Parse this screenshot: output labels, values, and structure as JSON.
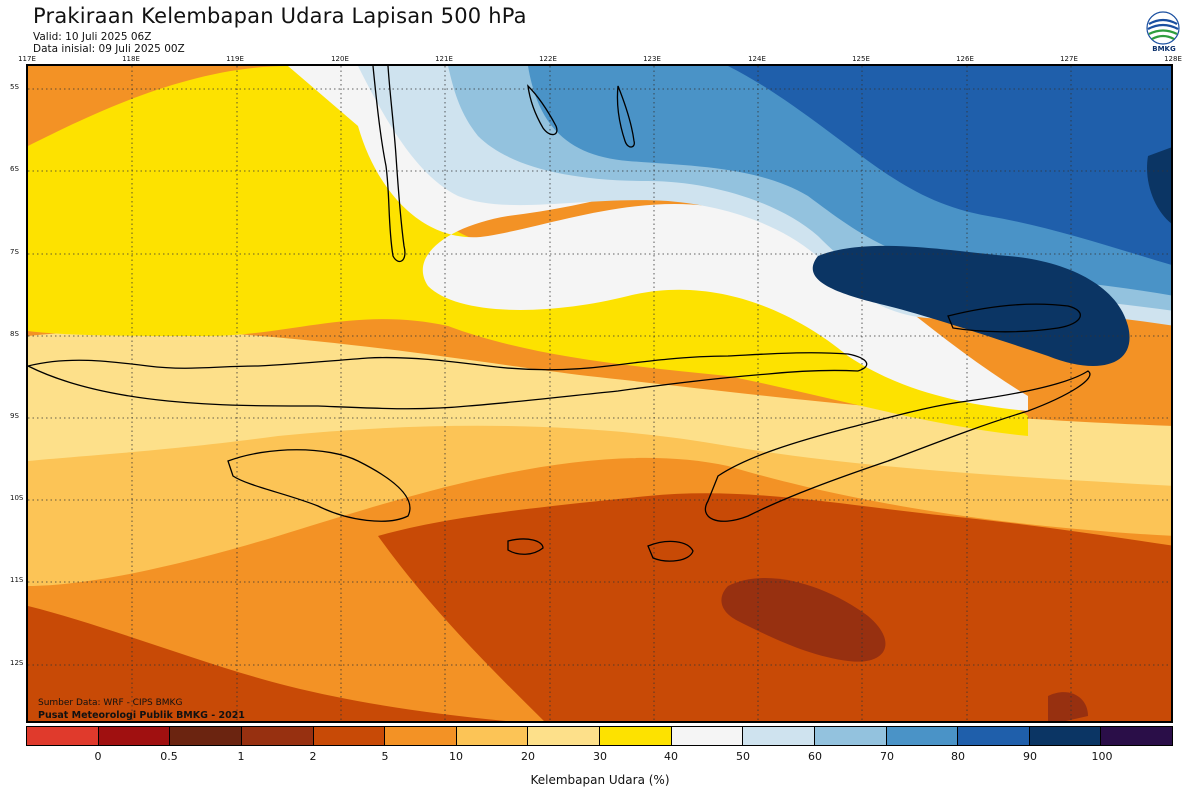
{
  "header": {
    "title": "Prakiraan Kelembapan Udara Lapisan 500 hPa",
    "valid": "Valid: 10 Juli 2025 06Z",
    "initial": "Data inisial: 09 Juli 2025 00Z"
  },
  "logo": {
    "icon": "bmkg-logo-icon",
    "text": "BMKG"
  },
  "axes": {
    "longitudes": [
      "117E",
      "118E",
      "119E",
      "120E",
      "121E",
      "122E",
      "123E",
      "124E",
      "125E",
      "126E",
      "127E",
      "128E"
    ],
    "latitudes": [
      "5S",
      "6S",
      "7S",
      "8S",
      "9S",
      "10S",
      "11S",
      "12S"
    ]
  },
  "source": {
    "line1": "Sumber Data: WRF - CIPS BMKG",
    "line2": "Pusat Meteorologi Publik BMKG - 2021"
  },
  "colorbar": {
    "title": "Kelembapan Udara (%)",
    "colors": [
      "#e03a2c",
      "#a01010",
      "#6b2410",
      "#973010",
      "#c84a06",
      "#f39225",
      "#fcc456",
      "#fde08a",
      "#fde200",
      "#f5f5f5",
      "#cfe3ef",
      "#93c2de",
      "#4a93c7",
      "#1f5fab",
      "#0b3564",
      "#2a0e48"
    ],
    "labels": [
      "0",
      "0.5",
      "1",
      "2",
      "5",
      "10",
      "20",
      "30",
      "40",
      "50",
      "60",
      "70",
      "80",
      "90",
      "100"
    ]
  }
}
